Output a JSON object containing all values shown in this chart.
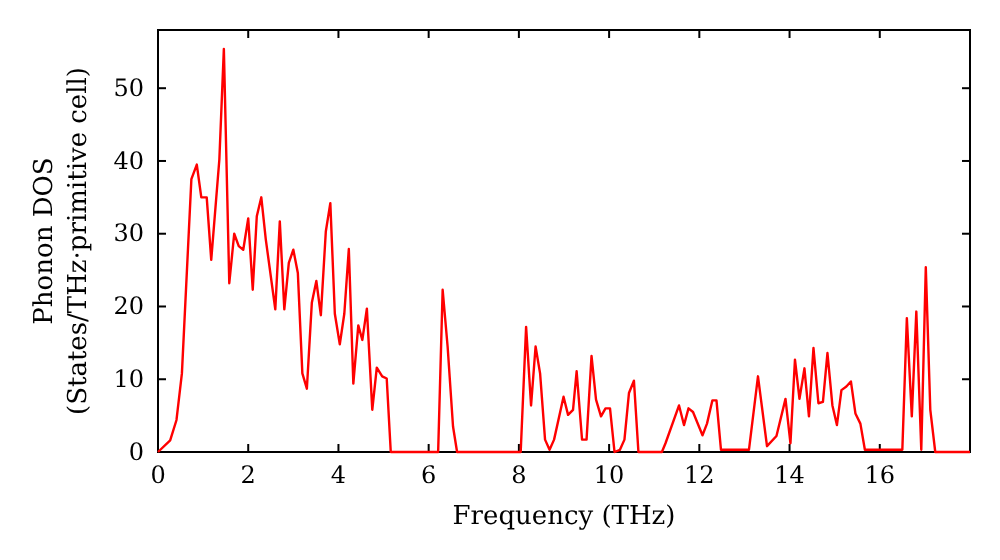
{
  "chart_data": {
    "type": "line",
    "xlabel": "Frequency (THz)",
    "ylabel": "Phonon DOS\n(States/THz·primitive cell)",
    "xlim": [
      0,
      18
    ],
    "ylim": [
      0,
      58
    ],
    "xticks": [
      0,
      2,
      4,
      6,
      8,
      10,
      12,
      14,
      16
    ],
    "yticks": [
      0,
      10,
      20,
      30,
      40,
      50
    ],
    "grid": false,
    "series": [
      {
        "color": "#ff0000",
        "x": [
          0,
          0.27,
          0.41,
          0.53,
          0.74,
          0.86,
          0.96,
          1.08,
          1.18,
          1.36,
          1.46,
          1.58,
          1.69,
          1.79,
          1.89,
          2.0,
          2.1,
          2.19,
          2.29,
          2.39,
          2.6,
          2.7,
          2.8,
          2.9,
          3.0,
          3.1,
          3.2,
          3.3,
          3.41,
          3.51,
          3.61,
          3.72,
          3.82,
          3.92,
          4.03,
          4.13,
          4.23,
          4.33,
          4.44,
          4.53,
          4.63,
          4.75,
          4.85,
          4.97,
          5.07,
          5.16,
          6.21,
          6.31,
          6.42,
          6.54,
          6.63,
          8.04,
          8.16,
          8.27,
          8.37,
          8.47,
          8.58,
          8.68,
          8.78,
          8.99,
          9.09,
          9.2,
          9.28,
          9.4,
          9.5,
          9.61,
          9.71,
          9.82,
          9.92,
          10.02,
          10.12,
          10.24,
          10.34,
          10.44,
          10.55,
          10.65,
          11.17,
          11.25,
          11.55,
          11.66,
          11.76,
          11.86,
          12.07,
          12.17,
          12.29,
          12.38,
          12.48,
          13.1,
          13.3,
          13.5,
          13.71,
          13.91,
          14.02,
          14.12,
          14.22,
          14.33,
          14.43,
          14.53,
          14.64,
          14.74,
          14.84,
          14.95,
          15.05,
          15.15,
          15.26,
          15.36,
          15.46,
          15.57,
          15.67,
          16.5,
          16.6,
          16.71,
          16.81,
          16.92,
          17.02,
          17.12,
          17.23,
          18
        ],
        "values": [
          0,
          1.6,
          4.4,
          10.8,
          37.5,
          39.5,
          35,
          35,
          26.4,
          40.2,
          55.4,
          23.2,
          30,
          28.3,
          27.8,
          32.1,
          22.3,
          32.4,
          35,
          29.2,
          19.6,
          31.7,
          19.6,
          26,
          27.8,
          24.6,
          10.8,
          8.7,
          20.5,
          23.5,
          18.8,
          30.3,
          34.2,
          19,
          14.8,
          19,
          27.9,
          9.4,
          17.4,
          15.4,
          19.7,
          5.8,
          11.6,
          10.4,
          10.1,
          0,
          0,
          22.3,
          14.5,
          3.5,
          0,
          0,
          17.2,
          6.4,
          14.5,
          10.8,
          1.7,
          0.3,
          1.7,
          7.6,
          5.1,
          5.8,
          11.1,
          1.7,
          1.7,
          13.2,
          7.2,
          4.9,
          6,
          6,
          0,
          0.3,
          1.7,
          8.1,
          9.8,
          0,
          0,
          1.2,
          6.4,
          3.7,
          6,
          5.5,
          2.3,
          3.9,
          7.1,
          7.1,
          0.3,
          0.3,
          10.4,
          0.8,
          2.2,
          7.3,
          1.2,
          12.7,
          7.3,
          11.5,
          4.9,
          14.3,
          6.7,
          6.9,
          13.6,
          6.4,
          3.7,
          8.5,
          9,
          9.7,
          5.3,
          3.9,
          0.3,
          0.3,
          18.4,
          4.9,
          19.3,
          0.3,
          25.4,
          5.8,
          0,
          0
        ]
      }
    ]
  }
}
